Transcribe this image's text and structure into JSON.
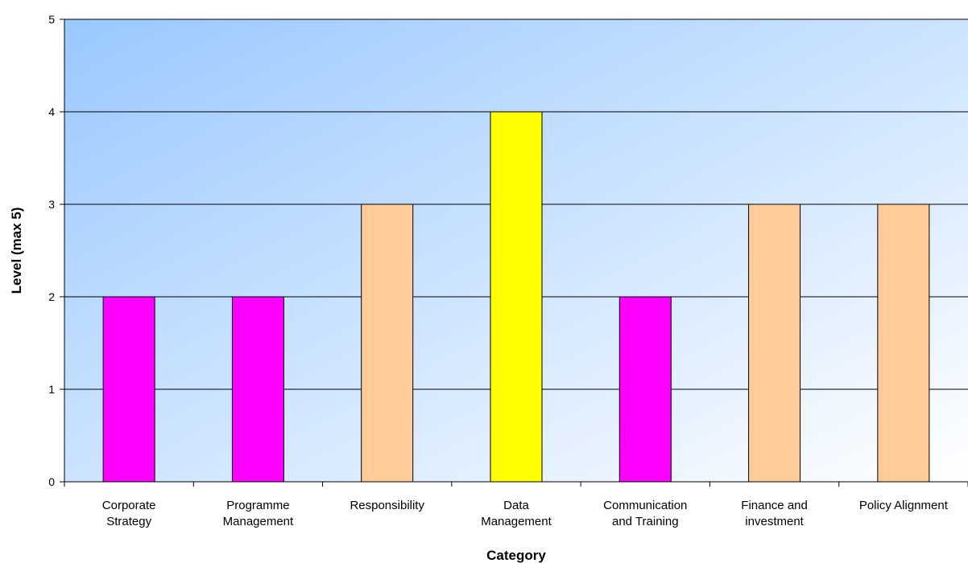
{
  "chart_data": {
    "type": "bar",
    "title": "",
    "xlabel": "Category",
    "ylabel": "Level (max 5)",
    "ylim": [
      0,
      5
    ],
    "yticks": [
      0,
      1,
      2,
      3,
      4,
      5
    ],
    "grid": true,
    "legend": "none",
    "categories": [
      [
        "Corporate",
        "Strategy"
      ],
      [
        "Programme",
        "Management"
      ],
      [
        "Responsibility"
      ],
      [
        "Data",
        "Management"
      ],
      [
        "Communication",
        "and Training"
      ],
      [
        "Finance and",
        "investment"
      ],
      [
        "Policy Alignment"
      ]
    ],
    "values": [
      2,
      2,
      3,
      4,
      2,
      3,
      3
    ],
    "colors": {
      "level_2": "#ff00ff",
      "level_3": "#ffcc99",
      "level_4": "#ffff00",
      "plot_background_start": "#99c8ff",
      "plot_background_end": "#ffffff",
      "gridline": "#000000"
    }
  }
}
